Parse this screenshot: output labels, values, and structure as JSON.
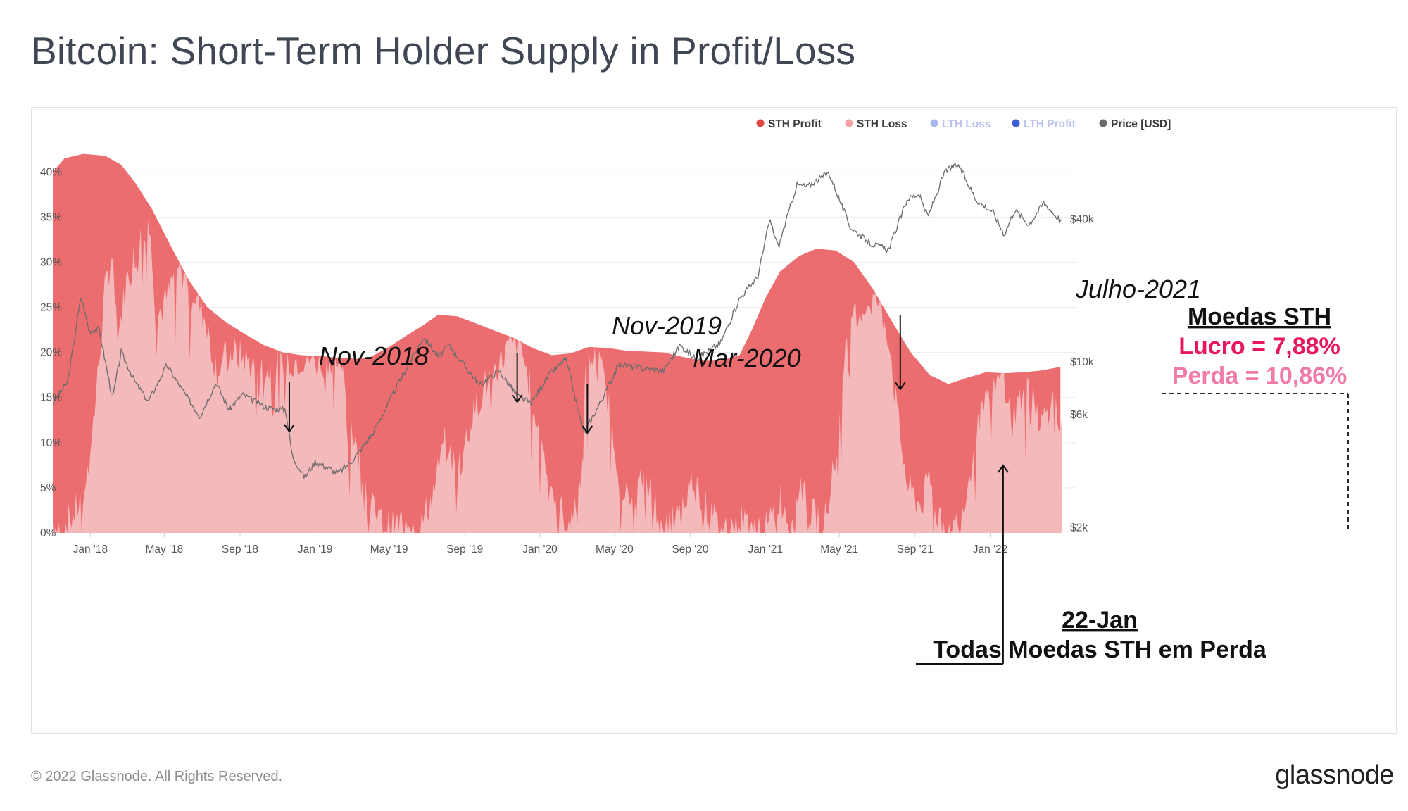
{
  "title": "Bitcoin: Short-Term Holder Supply in Profit/Loss",
  "footer": {
    "copyright": "© 2022 Glassnode. All Rights Reserved.",
    "logo": "glassnode"
  },
  "watermark": "glassnode",
  "colors": {
    "sth_profit": "#ec6d6f",
    "sth_loss": "#f4b9bb",
    "lth_loss": "#a9b8ee",
    "lth_profit": "#3d5ed6",
    "price": "#6b6b6b",
    "annotation_profit": "#e8175d",
    "annotation_loss": "#f07aa8"
  },
  "chart_data": {
    "type": "area",
    "legend": [
      {
        "name": "STH Profit",
        "color": "#e14545",
        "active": true
      },
      {
        "name": "STH Loss",
        "color": "#f0a2a4",
        "active": true
      },
      {
        "name": "LTH Loss",
        "color": "#a9b8ee",
        "active": false
      },
      {
        "name": "LTH Profit",
        "color": "#3d5ed6",
        "active": false
      },
      {
        "name": "Price [USD]",
        "color": "#6b6b6b",
        "active": true
      }
    ],
    "legend_position": "top-right",
    "x_range": [
      "2017-11-01",
      "2022-04-27"
    ],
    "x_ticks": [
      {
        "date": "2018-01-01",
        "label": "Jan '18"
      },
      {
        "date": "2018-05-01",
        "label": "May '18"
      },
      {
        "date": "2018-09-01",
        "label": "Sep '18"
      },
      {
        "date": "2019-01-01",
        "label": "Jan '19"
      },
      {
        "date": "2019-05-01",
        "label": "May '19"
      },
      {
        "date": "2019-09-01",
        "label": "Sep '19"
      },
      {
        "date": "2020-01-01",
        "label": "Jan '20"
      },
      {
        "date": "2020-05-01",
        "label": "May '20"
      },
      {
        "date": "2020-09-01",
        "label": "Sep '20"
      },
      {
        "date": "2021-01-01",
        "label": "Jan '21"
      },
      {
        "date": "2021-05-01",
        "label": "May '21"
      },
      {
        "date": "2021-09-01",
        "label": "Sep '21"
      },
      {
        "date": "2022-01-01",
        "label": "Jan '22"
      }
    ],
    "y_left": {
      "range": [
        0,
        44
      ],
      "ticks": [
        {
          "value": 0,
          "label": "0%"
        },
        {
          "value": 5,
          "label": "5%"
        },
        {
          "value": 10,
          "label": "10%"
        },
        {
          "value": 15,
          "label": "15%"
        },
        {
          "value": 20,
          "label": "20%"
        },
        {
          "value": 25,
          "label": "25%"
        },
        {
          "value": 30,
          "label": "30%"
        },
        {
          "value": 35,
          "label": "35%"
        },
        {
          "value": 40,
          "label": "40%"
        }
      ]
    },
    "y_right": {
      "scale": "log",
      "range": [
        1900,
        90000
      ],
      "ticks": [
        {
          "value": 2000,
          "label": "$2k"
        },
        {
          "value": 6000,
          "label": "$6k"
        },
        {
          "value": 10000,
          "label": "$10k"
        },
        {
          "value": 40000,
          "label": "$40k"
        }
      ]
    },
    "total_sth_supply": [
      [
        "2017-11-01",
        40.0
      ],
      [
        "2017-11-20",
        41.5
      ],
      [
        "2017-12-20",
        42.0
      ],
      [
        "2018-01-25",
        41.8
      ],
      [
        "2018-02-20",
        40.8
      ],
      [
        "2018-03-15",
        38.8
      ],
      [
        "2018-04-10",
        36.0
      ],
      [
        "2018-05-10",
        32.0
      ],
      [
        "2018-06-10",
        28.0
      ],
      [
        "2018-07-10",
        25.0
      ],
      [
        "2018-08-10",
        23.3
      ],
      [
        "2018-09-10",
        22.0
      ],
      [
        "2018-10-10",
        20.8
      ],
      [
        "2018-11-10",
        20.0
      ],
      [
        "2018-12-10",
        19.7
      ],
      [
        "2019-01-10",
        19.6
      ],
      [
        "2019-02-10",
        19.4
      ],
      [
        "2019-03-10",
        19.3
      ],
      [
        "2019-04-01",
        19.5
      ],
      [
        "2019-05-01",
        20.6
      ],
      [
        "2019-06-01",
        22.0
      ],
      [
        "2019-06-25",
        23.0
      ],
      [
        "2019-07-20",
        24.2
      ],
      [
        "2019-08-20",
        24.0
      ],
      [
        "2019-09-20",
        23.2
      ],
      [
        "2019-10-20",
        22.4
      ],
      [
        "2019-11-20",
        21.6
      ],
      [
        "2019-12-20",
        20.5
      ],
      [
        "2020-01-20",
        19.7
      ],
      [
        "2020-02-20",
        19.9
      ],
      [
        "2020-03-20",
        20.6
      ],
      [
        "2020-04-20",
        20.5
      ],
      [
        "2020-05-20",
        20.2
      ],
      [
        "2020-06-20",
        20.1
      ],
      [
        "2020-07-20",
        20.0
      ],
      [
        "2020-08-20",
        19.5
      ],
      [
        "2020-09-20",
        19.1
      ],
      [
        "2020-10-20",
        19.1
      ],
      [
        "2020-11-20",
        19.7
      ],
      [
        "2020-12-10",
        22.5
      ],
      [
        "2021-01-01",
        26.0
      ],
      [
        "2021-01-25",
        29.0
      ],
      [
        "2021-02-25",
        30.7
      ],
      [
        "2021-03-25",
        31.5
      ],
      [
        "2021-04-25",
        31.3
      ],
      [
        "2021-05-25",
        30.0
      ],
      [
        "2021-06-25",
        27.0
      ],
      [
        "2021-07-25",
        23.5
      ],
      [
        "2021-08-25",
        20.0
      ],
      [
        "2021-09-25",
        17.5
      ],
      [
        "2021-10-25",
        16.5
      ],
      [
        "2021-11-25",
        17.2
      ],
      [
        "2021-12-25",
        17.8
      ],
      [
        "2022-01-25",
        17.7
      ],
      [
        "2022-02-25",
        17.8
      ],
      [
        "2022-03-25",
        18.0
      ],
      [
        "2022-04-25",
        18.4
      ]
    ],
    "sth_loss": [
      [
        "2017-11-01",
        1.0
      ],
      [
        "2017-11-15",
        0.5
      ],
      [
        "2017-12-05",
        2.0
      ],
      [
        "2017-12-25",
        5.0
      ],
      [
        "2018-01-10",
        15.0
      ],
      [
        "2018-01-25",
        27.0
      ],
      [
        "2018-02-05",
        31.0
      ],
      [
        "2018-02-15",
        22.0
      ],
      [
        "2018-03-01",
        28.0
      ],
      [
        "2018-03-20",
        32.0
      ],
      [
        "2018-04-05",
        35.0
      ],
      [
        "2018-04-20",
        24.0
      ],
      [
        "2018-05-05",
        26.0
      ],
      [
        "2018-05-25",
        30.0
      ],
      [
        "2018-06-15",
        27.0
      ],
      [
        "2018-07-05",
        24.0
      ],
      [
        "2018-07-25",
        18.0
      ],
      [
        "2018-08-15",
        20.0
      ],
      [
        "2018-09-05",
        19.5
      ],
      [
        "2018-09-25",
        18.5
      ],
      [
        "2018-10-15",
        18.0
      ],
      [
        "2018-11-05",
        18.5
      ],
      [
        "2018-11-25",
        19.0
      ],
      [
        "2018-12-15",
        19.5
      ],
      [
        "2019-01-05",
        19.0
      ],
      [
        "2019-01-25",
        19.5
      ],
      [
        "2019-02-10",
        19.0
      ],
      [
        "2019-02-25",
        13.0
      ],
      [
        "2019-03-15",
        8.0
      ],
      [
        "2019-04-01",
        3.0
      ],
      [
        "2019-04-20",
        1.0
      ],
      [
        "2019-05-10",
        0.5
      ],
      [
        "2019-05-30",
        2.0
      ],
      [
        "2019-06-20",
        0.5
      ],
      [
        "2019-07-10",
        4.0
      ],
      [
        "2019-07-30",
        10.0
      ],
      [
        "2019-08-20",
        7.0
      ],
      [
        "2019-09-10",
        12.0
      ],
      [
        "2019-09-30",
        16.0
      ],
      [
        "2019-10-20",
        18.0
      ],
      [
        "2019-11-10",
        20.5
      ],
      [
        "2019-11-30",
        21.0
      ],
      [
        "2019-12-20",
        15.0
      ],
      [
        "2020-01-10",
        8.0
      ],
      [
        "2020-01-25",
        4.0
      ],
      [
        "2020-02-15",
        1.0
      ],
      [
        "2020-03-05",
        5.0
      ],
      [
        "2020-03-15",
        18.0
      ],
      [
        "2020-04-01",
        20.0
      ],
      [
        "2020-04-20",
        15.0
      ],
      [
        "2020-05-10",
        6.0
      ],
      [
        "2020-05-25",
        3.0
      ],
      [
        "2020-06-15",
        6.0
      ],
      [
        "2020-07-05",
        4.0
      ],
      [
        "2020-07-25",
        1.0
      ],
      [
        "2020-08-15",
        2.0
      ],
      [
        "2020-09-05",
        6.0
      ],
      [
        "2020-09-25",
        3.0
      ],
      [
        "2020-10-15",
        1.0
      ],
      [
        "2020-11-05",
        0.5
      ],
      [
        "2020-11-25",
        1.5
      ],
      [
        "2020-12-15",
        1.0
      ],
      [
        "2021-01-05",
        0.5
      ],
      [
        "2021-01-25",
        4.0
      ],
      [
        "2021-02-10",
        1.0
      ],
      [
        "2021-03-01",
        6.0
      ],
      [
        "2021-03-15",
        2.0
      ],
      [
        "2021-04-05",
        1.5
      ],
      [
        "2021-04-25",
        8.0
      ],
      [
        "2021-05-15",
        22.0
      ],
      [
        "2021-05-30",
        24.0
      ],
      [
        "2021-06-15",
        25.5
      ],
      [
        "2021-07-01",
        26.0
      ],
      [
        "2021-07-20",
        22.0
      ],
      [
        "2021-08-05",
        12.0
      ],
      [
        "2021-08-20",
        5.0
      ],
      [
        "2021-09-10",
        3.0
      ],
      [
        "2021-09-25",
        6.0
      ],
      [
        "2021-10-10",
        1.0
      ],
      [
        "2021-10-25",
        0.5
      ],
      [
        "2021-11-10",
        1.0
      ],
      [
        "2021-11-25",
        5.0
      ],
      [
        "2021-12-10",
        12.0
      ],
      [
        "2021-12-25",
        14.0
      ],
      [
        "2022-01-10",
        16.0
      ],
      [
        "2022-01-22",
        17.7
      ],
      [
        "2022-02-05",
        13.0
      ],
      [
        "2022-02-20",
        15.0
      ],
      [
        "2022-03-10",
        16.0
      ],
      [
        "2022-03-25",
        12.0
      ],
      [
        "2022-04-10",
        15.0
      ],
      [
        "2022-04-27",
        10.86
      ]
    ],
    "price_usd": [
      [
        "2017-11-01",
        6700
      ],
      [
        "2017-11-25",
        8200
      ],
      [
        "2017-12-17",
        19000
      ],
      [
        "2017-12-30",
        13500
      ],
      [
        "2018-01-15",
        13800
      ],
      [
        "2018-02-06",
        7000
      ],
      [
        "2018-02-20",
        11000
      ],
      [
        "2018-03-15",
        8200
      ],
      [
        "2018-04-05",
        6800
      ],
      [
        "2018-05-05",
        9700
      ],
      [
        "2018-06-01",
        7500
      ],
      [
        "2018-06-28",
        5900
      ],
      [
        "2018-07-24",
        8200
      ],
      [
        "2018-08-14",
        6300
      ],
      [
        "2018-09-05",
        7300
      ],
      [
        "2018-10-15",
        6400
      ],
      [
        "2018-11-14",
        6300
      ],
      [
        "2018-11-25",
        4000
      ],
      [
        "2018-12-15",
        3250
      ],
      [
        "2019-01-01",
        3800
      ],
      [
        "2019-02-07",
        3400
      ],
      [
        "2019-03-01",
        3800
      ],
      [
        "2019-04-05",
        5000
      ],
      [
        "2019-05-15",
        8000
      ],
      [
        "2019-06-26",
        12800
      ],
      [
        "2019-07-20",
        10500
      ],
      [
        "2019-08-06",
        11800
      ],
      [
        "2019-09-01",
        9600
      ],
      [
        "2019-09-26",
        8000
      ],
      [
        "2019-10-26",
        9200
      ],
      [
        "2019-11-25",
        7200
      ],
      [
        "2019-12-18",
        6700
      ],
      [
        "2020-01-15",
        8800
      ],
      [
        "2020-02-12",
        10300
      ],
      [
        "2020-03-12",
        5000
      ],
      [
        "2020-04-10",
        6900
      ],
      [
        "2020-05-08",
        9800
      ],
      [
        "2020-06-15",
        9400
      ],
      [
        "2020-07-20",
        9200
      ],
      [
        "2020-08-15",
        11800
      ],
      [
        "2020-09-10",
        10300
      ],
      [
        "2020-10-20",
        12000
      ],
      [
        "2020-11-20",
        18500
      ],
      [
        "2020-12-20",
        23000
      ],
      [
        "2021-01-08",
        40000
      ],
      [
        "2021-01-22",
        30500
      ],
      [
        "2021-02-21",
        56000
      ],
      [
        "2021-03-10",
        55000
      ],
      [
        "2021-04-14",
        63000
      ],
      [
        "2021-05-19",
        37000
      ],
      [
        "2021-06-22",
        31500
      ],
      [
        "2021-07-20",
        29800
      ],
      [
        "2021-08-20",
        49000
      ],
      [
        "2021-09-07",
        51000
      ],
      [
        "2021-09-22",
        41000
      ],
      [
        "2021-10-20",
        64000
      ],
      [
        "2021-11-10",
        68000
      ],
      [
        "2021-12-10",
        48000
      ],
      [
        "2022-01-05",
        43000
      ],
      [
        "2022-01-24",
        34500
      ],
      [
        "2022-02-10",
        44000
      ],
      [
        "2022-03-05",
        38000
      ],
      [
        "2022-03-29",
        47000
      ],
      [
        "2022-04-27",
        39000
      ]
    ]
  },
  "annotations": {
    "nov2018": {
      "label": "Nov-2018",
      "date": "2018-11-20"
    },
    "nov2019": {
      "label": "Nov-2019",
      "date": "2019-11-25"
    },
    "mar2020": {
      "label": "Mar-2020",
      "date": "2020-03-18"
    },
    "jul2021": {
      "label": "Julho-2021",
      "date": "2021-08-08"
    },
    "jan22": {
      "label": "22-Jan",
      "subtitle": "Todas Moedas STH em Perda",
      "date": "2022-01-22"
    },
    "summary": {
      "title": "Moedas STH",
      "profit": "Lucro = 7,88%",
      "loss": "Perda = 10,86%"
    }
  }
}
